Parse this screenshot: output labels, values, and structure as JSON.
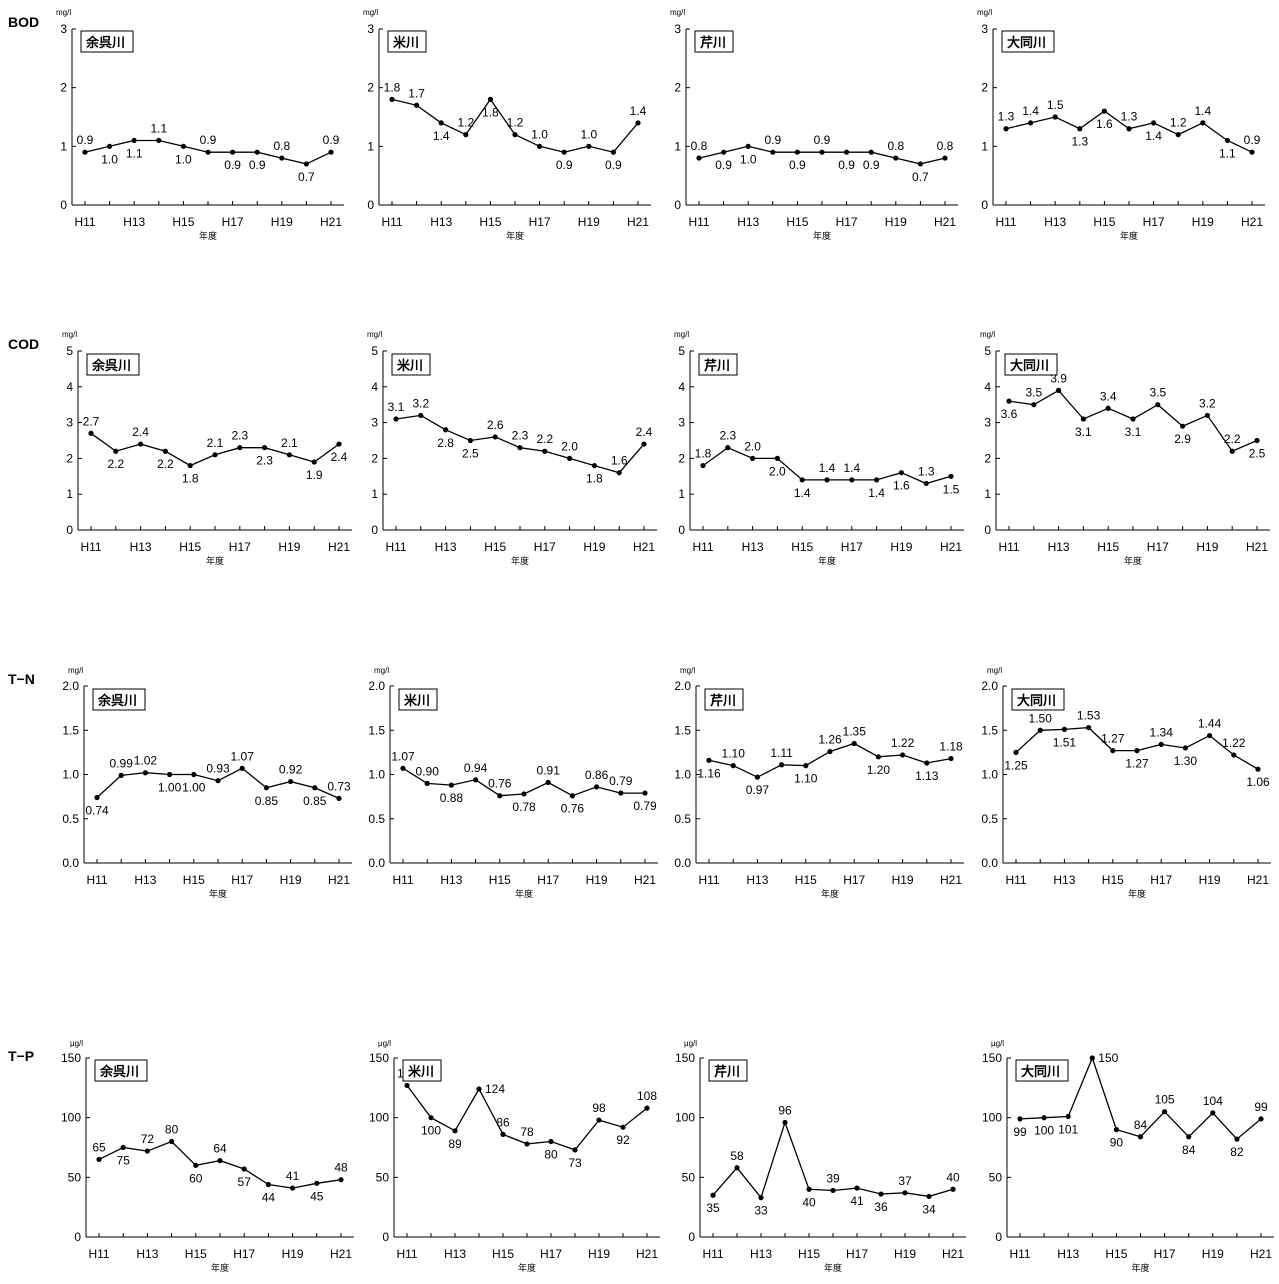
{
  "rows": [
    {
      "label": "BOD",
      "unit": "mg/l",
      "ylim": [
        0,
        3
      ],
      "yticks": [
        0,
        1,
        2,
        3
      ],
      "ytick_labels": [
        "0",
        "1",
        "2",
        "3"
      ]
    },
    {
      "label": "COD",
      "unit": "mg/l",
      "ylim": [
        0,
        5
      ],
      "yticks": [
        0,
        1,
        2,
        3,
        4,
        5
      ],
      "ytick_labels": [
        "0",
        "1",
        "2",
        "3",
        "4",
        "5"
      ]
    },
    {
      "label": "T−N",
      "unit": "mg/l",
      "ylim": [
        0,
        2
      ],
      "yticks": [
        0,
        0.5,
        1,
        1.5,
        2
      ],
      "ytick_labels": [
        "0.0",
        "0.5",
        "1.0",
        "1.5",
        "2.0"
      ]
    },
    {
      "label": "T−P",
      "unit": "μg/l",
      "ylim": [
        0,
        150
      ],
      "yticks": [
        0,
        50,
        100,
        150
      ],
      "ytick_labels": [
        "0",
        "50",
        "100",
        "150"
      ]
    }
  ],
  "rivers": [
    "余呉川",
    "米川",
    "芹川",
    "大同川"
  ],
  "x_categories": [
    "H11",
    "H12",
    "H13",
    "H14",
    "H15",
    "H16",
    "H17",
    "H18",
    "H19",
    "H20",
    "H21"
  ],
  "x_tick_labels": [
    "H11",
    "H13",
    "H15",
    "H17",
    "H19",
    "H21"
  ],
  "xlabel": "年度",
  "chart_data": [
    {
      "type": "line",
      "row": 0,
      "col": 0,
      "title": "余呉川",
      "ylabel": "mg/l",
      "xlabel": "年度",
      "values": [
        0.9,
        1.0,
        1.1,
        1.1,
        1.0,
        0.9,
        0.9,
        0.9,
        0.8,
        0.7,
        0.9
      ],
      "labels": [
        "0.9",
        "1.0",
        "1.1",
        "1.1",
        "1.0",
        "0.9",
        "0.9",
        "0.9",
        "0.8",
        "0.7",
        "0.9"
      ],
      "label_pos": [
        "a",
        "b",
        "b",
        "a",
        "b",
        "a",
        "b",
        "b",
        "a",
        "b",
        "a"
      ]
    },
    {
      "type": "line",
      "row": 0,
      "col": 1,
      "title": "米川",
      "ylabel": "mg/l",
      "xlabel": "年度",
      "values": [
        1.8,
        1.7,
        1.4,
        1.2,
        1.8,
        1.2,
        1.0,
        0.9,
        1.0,
        0.9,
        1.4
      ],
      "labels": [
        "1.8",
        "1.7",
        "1.4",
        "1.2",
        "1.8",
        "1.2",
        "1.0",
        "0.9",
        "1.0",
        "0.9",
        "1.4"
      ],
      "label_pos": [
        "a",
        "a",
        "b",
        "a",
        "b",
        "a",
        "a",
        "b",
        "a",
        "b",
        "a"
      ]
    },
    {
      "type": "line",
      "row": 0,
      "col": 2,
      "title": "芹川",
      "ylabel": "mg/l",
      "xlabel": "年度",
      "values": [
        0.8,
        0.9,
        1.0,
        0.9,
        0.9,
        0.9,
        0.9,
        0.9,
        0.8,
        0.7,
        0.8
      ],
      "labels": [
        "0.8",
        "0.9",
        "1.0",
        "0.9",
        "0.9",
        "0.9",
        "0.9",
        "0.9",
        "0.8",
        "0.7",
        "0.8"
      ],
      "label_pos": [
        "a",
        "b",
        "b",
        "a",
        "b",
        "a",
        "b",
        "b",
        "a",
        "b",
        "a"
      ]
    },
    {
      "type": "line",
      "row": 0,
      "col": 3,
      "title": "大同川",
      "ylabel": "mg/l",
      "xlabel": "年度",
      "values": [
        1.3,
        1.4,
        1.5,
        1.3,
        1.6,
        1.3,
        1.4,
        1.2,
        1.4,
        1.1,
        0.9
      ],
      "labels": [
        "1.3",
        "1.4",
        "1.5",
        "1.3",
        "1.6",
        "1.3",
        "1.4",
        "1.2",
        "1.4",
        "1.1",
        "0.9"
      ],
      "label_pos": [
        "a",
        "a",
        "a",
        "b",
        "b",
        "a",
        "b",
        "a",
        "a",
        "b",
        "a"
      ]
    },
    {
      "type": "line",
      "row": 1,
      "col": 0,
      "title": "余呉川",
      "ylabel": "mg/l",
      "xlabel": "年度",
      "values": [
        2.7,
        2.2,
        2.4,
        2.2,
        1.8,
        2.1,
        2.3,
        2.3,
        2.1,
        1.9,
        2.4
      ],
      "labels": [
        "2.7",
        "2.2",
        "2.4",
        "2.2",
        "1.8",
        "2.1",
        "2.3",
        "2.3",
        "2.1",
        "1.9",
        "2.4"
      ],
      "label_pos": [
        "a",
        "b",
        "a",
        "b",
        "b",
        "a",
        "a",
        "b",
        "a",
        "b",
        "b"
      ]
    },
    {
      "type": "line",
      "row": 1,
      "col": 1,
      "title": "米川",
      "ylabel": "mg/l",
      "xlabel": "年度",
      "values": [
        3.1,
        3.2,
        2.8,
        2.5,
        2.6,
        2.3,
        2.2,
        2.0,
        1.8,
        1.6,
        2.4
      ],
      "labels": [
        "3.1",
        "3.2",
        "2.8",
        "2.5",
        "2.6",
        "2.3",
        "2.2",
        "2.0",
        "1.8",
        "1.6",
        "2.4"
      ],
      "label_pos": [
        "a",
        "a",
        "b",
        "b",
        "a",
        "a",
        "a",
        "a",
        "b",
        "a",
        "a"
      ]
    },
    {
      "type": "line",
      "row": 1,
      "col": 2,
      "title": "芹川",
      "ylabel": "mg/l",
      "xlabel": "年度",
      "values": [
        1.8,
        2.3,
        2.0,
        2.0,
        1.4,
        1.4,
        1.4,
        1.4,
        1.6,
        1.3,
        1.5
      ],
      "labels": [
        "1.8",
        "2.3",
        "2.0",
        "2.0",
        "1.4",
        "1.4",
        "1.4",
        "1.4",
        "1.6",
        "1.3",
        "1.5"
      ],
      "label_pos": [
        "a",
        "a",
        "a",
        "b",
        "b",
        "a",
        "a",
        "b",
        "b",
        "a",
        "b"
      ]
    },
    {
      "type": "line",
      "row": 1,
      "col": 3,
      "title": "大同川",
      "ylabel": "mg/l",
      "xlabel": "年度",
      "values": [
        3.6,
        3.5,
        3.9,
        3.1,
        3.4,
        3.1,
        3.5,
        2.9,
        3.2,
        2.2,
        2.5
      ],
      "labels": [
        "3.6",
        "3.5",
        "3.9",
        "3.1",
        "3.4",
        "3.1",
        "3.5",
        "2.9",
        "3.2",
        "2.2",
        "2.5"
      ],
      "label_pos": [
        "b",
        "a",
        "a",
        "b",
        "a",
        "b",
        "a",
        "b",
        "a",
        "a",
        "b"
      ]
    },
    {
      "type": "line",
      "row": 2,
      "col": 0,
      "title": "余呉川",
      "ylabel": "mg/l",
      "xlabel": "年度",
      "values": [
        0.74,
        0.99,
        1.02,
        1.0,
        1.0,
        0.93,
        1.07,
        0.85,
        0.92,
        0.85,
        0.73
      ],
      "labels": [
        "0.74",
        "0.99",
        "1.02",
        "1.00",
        "1.00",
        "0.93",
        "1.07",
        "0.85",
        "0.92",
        "0.85",
        "0.73"
      ],
      "label_pos": [
        "b",
        "a",
        "a",
        "b",
        "b",
        "a",
        "a",
        "b",
        "a",
        "b",
        "a"
      ]
    },
    {
      "type": "line",
      "row": 2,
      "col": 1,
      "title": "米川",
      "ylabel": "mg/l",
      "xlabel": "年度",
      "values": [
        1.07,
        0.9,
        0.88,
        0.94,
        0.76,
        0.78,
        0.91,
        0.76,
        0.86,
        0.79,
        0.79
      ],
      "labels": [
        "1.07",
        "0.90",
        "0.88",
        "0.94",
        "0.76",
        "0.78",
        "0.91",
        "0.76",
        "0.86",
        "0.79",
        "0.79"
      ],
      "label_pos": [
        "a",
        "a",
        "b",
        "a",
        "a",
        "b",
        "a",
        "b",
        "a",
        "a",
        "b"
      ]
    },
    {
      "type": "line",
      "row": 2,
      "col": 2,
      "title": "芹川",
      "ylabel": "mg/l",
      "xlabel": "年度",
      "values": [
        1.16,
        1.1,
        0.97,
        1.11,
        1.1,
        1.26,
        1.35,
        1.2,
        1.22,
        1.13,
        1.18
      ],
      "labels": [
        "1.16",
        "1.10",
        "0.97",
        "1.11",
        "1.10",
        "1.26",
        "1.35",
        "1.20",
        "1.22",
        "1.13",
        "1.18"
      ],
      "label_pos": [
        "b",
        "a",
        "b",
        "a",
        "b",
        "a",
        "a",
        "b",
        "a",
        "b",
        "a"
      ]
    },
    {
      "type": "line",
      "row": 2,
      "col": 3,
      "title": "大同川",
      "ylabel": "mg/l",
      "xlabel": "年度",
      "values": [
        1.25,
        1.5,
        1.51,
        1.53,
        1.27,
        1.27,
        1.34,
        1.3,
        1.44,
        1.22,
        1.06
      ],
      "labels": [
        "1.25",
        "1.50",
        "1.51",
        "1.53",
        "1.27",
        "1.27",
        "1.34",
        "1.30",
        "1.44",
        "1.22",
        "1.06"
      ],
      "label_pos": [
        "b",
        "a",
        "b",
        "a",
        "a",
        "b",
        "a",
        "b",
        "a",
        "a",
        "b"
      ]
    },
    {
      "type": "line",
      "row": 3,
      "col": 0,
      "title": "余呉川",
      "ylabel": "μg/l",
      "xlabel": "年度",
      "values": [
        65,
        75,
        72,
        80,
        60,
        64,
        57,
        44,
        41,
        45,
        48
      ],
      "labels": [
        "65",
        "75",
        "72",
        "80",
        "60",
        "64",
        "57",
        "44",
        "41",
        "45",
        "48"
      ],
      "label_pos": [
        "a",
        "b",
        "a",
        "a",
        "b",
        "a",
        "b",
        "b",
        "a",
        "b",
        "a"
      ]
    },
    {
      "type": "line",
      "row": 3,
      "col": 1,
      "title": "米川",
      "ylabel": "μg/l",
      "xlabel": "年度",
      "values": [
        127,
        100,
        89,
        124,
        86,
        78,
        80,
        73,
        98,
        92,
        108
      ],
      "labels": [
        "127",
        "100",
        "89",
        "124",
        "86",
        "78",
        "80",
        "73",
        "98",
        "92",
        "108"
      ],
      "label_pos": [
        "a",
        "b",
        "b",
        "r",
        "a",
        "a",
        "b",
        "b",
        "a",
        "b",
        "a"
      ]
    },
    {
      "type": "line",
      "row": 3,
      "col": 2,
      "title": "芹川",
      "ylabel": "μg/l",
      "xlabel": "年度",
      "values": [
        35,
        58,
        33,
        96,
        40,
        39,
        41,
        36,
        37,
        34,
        40
      ],
      "labels": [
        "35",
        "58",
        "33",
        "96",
        "40",
        "39",
        "41",
        "36",
        "37",
        "34",
        "40"
      ],
      "label_pos": [
        "b",
        "a",
        "b",
        "a",
        "b",
        "a",
        "b",
        "b",
        "a",
        "b",
        "a"
      ]
    },
    {
      "type": "line",
      "row": 3,
      "col": 3,
      "title": "大同川",
      "ylabel": "μg/l",
      "xlabel": "年度",
      "values": [
        99,
        100,
        101,
        150,
        90,
        84,
        105,
        84,
        104,
        82,
        99
      ],
      "labels": [
        "99",
        "100",
        "101",
        "150",
        "90",
        "84",
        "105",
        "84",
        "104",
        "82",
        "99"
      ],
      "label_pos": [
        "b",
        "b",
        "b",
        "r",
        "b",
        "a",
        "a",
        "b",
        "a",
        "b",
        "a"
      ]
    }
  ]
}
